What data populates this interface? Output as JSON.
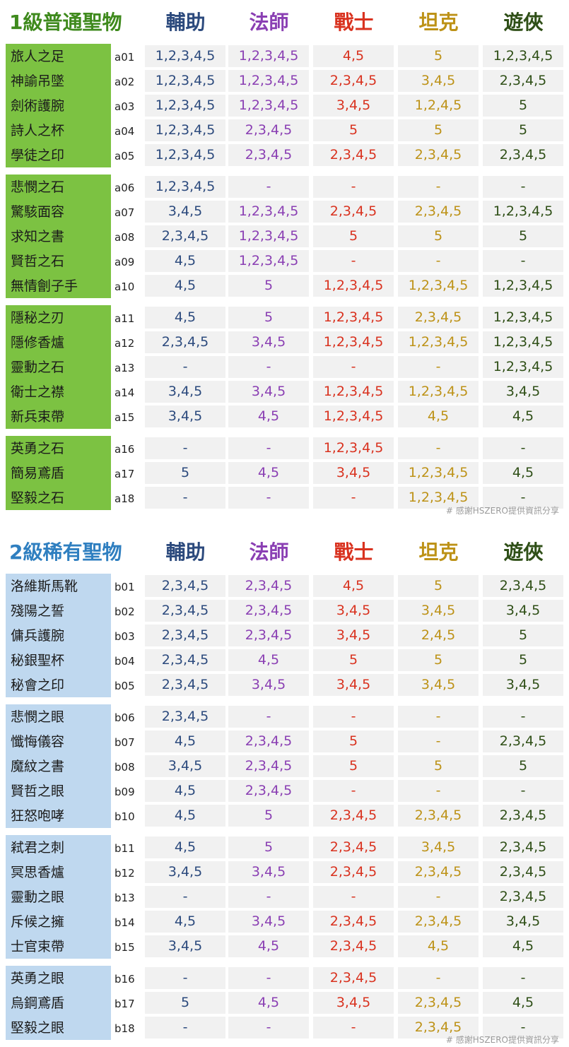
{
  "columns": [
    "輔助",
    "法師",
    "戰士",
    "坦克",
    "遊俠"
  ],
  "colors": {
    "support": "#2c4a7d",
    "mage": "#8a3fb3",
    "warrior": "#d9321f",
    "tank": "#bd9217",
    "ranger": "#2f4f17",
    "common_label_bg": "#7cc242",
    "rare_label_bg": "#bfd8ef"
  },
  "credit": "# 感謝HSZERO提供資訊分享",
  "sections": [
    {
      "title": "1級普通聖物",
      "groups": [
        [
          {
            "name": "旅人之足",
            "code": "a01",
            "values": [
              "1,2,3,4,5",
              "1,2,3,4,5",
              "4,5",
              "5",
              "1,2,3,4,5"
            ]
          },
          {
            "name": "神諭吊墜",
            "code": "a02",
            "values": [
              "1,2,3,4,5",
              "1,2,3,4,5",
              "2,3,4,5",
              "3,4,5",
              "2,3,4,5"
            ]
          },
          {
            "name": "劍術護腕",
            "code": "a03",
            "values": [
              "1,2,3,4,5",
              "1,2,3,4,5",
              "3,4,5",
              "1,2,4,5",
              "5"
            ]
          },
          {
            "name": "詩人之杯",
            "code": "a04",
            "values": [
              "1,2,3,4,5",
              "2,3,4,5",
              "5",
              "5",
              "5"
            ]
          },
          {
            "name": "學徒之印",
            "code": "a05",
            "values": [
              "1,2,3,4,5",
              "2,3,4,5",
              "2,3,4,5",
              "2,3,4,5",
              "2,3,4,5"
            ]
          }
        ],
        [
          {
            "name": "悲憫之石",
            "code": "a06",
            "values": [
              "1,2,3,4,5",
              "-",
              "-",
              "-",
              "-"
            ]
          },
          {
            "name": "驚駭面容",
            "code": "a07",
            "values": [
              "3,4,5",
              "1,2,3,4,5",
              "2,3,4,5",
              "2,3,4,5",
              "1,2,3,4,5"
            ]
          },
          {
            "name": "求知之書",
            "code": "a08",
            "values": [
              "2,3,4,5",
              "1,2,3,4,5",
              "5",
              "5",
              "5"
            ]
          },
          {
            "name": "賢哲之石",
            "code": "a09",
            "values": [
              "4,5",
              "1,2,3,4,5",
              "-",
              "-",
              "-"
            ]
          },
          {
            "name": "無情劊子手",
            "code": "a10",
            "values": [
              "4,5",
              "5",
              "1,2,3,4,5",
              "1,2,3,4,5",
              "1,2,3,4,5"
            ]
          }
        ],
        [
          {
            "name": "隱秘之刃",
            "code": "a11",
            "values": [
              "4,5",
              "5",
              "1,2,3,4,5",
              "2,3,4,5",
              "1,2,3,4,5"
            ]
          },
          {
            "name": "隱修香爐",
            "code": "a12",
            "values": [
              "2,3,4,5",
              "3,4,5",
              "1,2,3,4,5",
              "1,2,3,4,5",
              "1,2,3,4,5"
            ]
          },
          {
            "name": "靈動之石",
            "code": "a13",
            "values": [
              "-",
              "-",
              "-",
              "-",
              "1,2,3,4,5"
            ]
          },
          {
            "name": "衛士之襟",
            "code": "a14",
            "values": [
              "3,4,5",
              "3,4,5",
              "1,2,3,4,5",
              "1,2,3,4,5",
              "3,4,5"
            ]
          },
          {
            "name": "新兵束帶",
            "code": "a15",
            "values": [
              "3,4,5",
              "4,5",
              "1,2,3,4,5",
              "4,5",
              "4,5"
            ]
          }
        ],
        [
          {
            "name": "英勇之石",
            "code": "a16",
            "values": [
              "-",
              "-",
              "1,2,3,4,5",
              "-",
              "-"
            ]
          },
          {
            "name": "簡易鳶盾",
            "code": "a17",
            "values": [
              "5",
              "4,5",
              "3,4,5",
              "1,2,3,4,5",
              "4,5"
            ]
          },
          {
            "name": "堅毅之石",
            "code": "a18",
            "values": [
              "-",
              "-",
              "-",
              "1,2,3,4,5",
              "-"
            ]
          }
        ]
      ]
    },
    {
      "title": "2級稀有聖物",
      "groups": [
        [
          {
            "name": "洛維斯馬靴",
            "code": "b01",
            "values": [
              "2,3,4,5",
              "2,3,4,5",
              "4,5",
              "5",
              "2,3,4,5"
            ]
          },
          {
            "name": "殘陽之誓",
            "code": "b02",
            "values": [
              "2,3,4,5",
              "2,3,4,5",
              "3,4,5",
              "3,4,5",
              "3,4,5"
            ]
          },
          {
            "name": "傭兵護腕",
            "code": "b03",
            "values": [
              "2,3,4,5",
              "2,3,4,5",
              "3,4,5",
              "2,4,5",
              "5"
            ]
          },
          {
            "name": "秘銀聖杯",
            "code": "b04",
            "values": [
              "2,3,4,5",
              "4,5",
              "5",
              "5",
              "5"
            ]
          },
          {
            "name": "秘會之印",
            "code": "b05",
            "values": [
              "2,3,4,5",
              "3,4,5",
              "3,4,5",
              "3,4,5",
              "3,4,5"
            ]
          }
        ],
        [
          {
            "name": "悲憫之眼",
            "code": "b06",
            "values": [
              "2,3,4,5",
              "-",
              "-",
              "-",
              "-"
            ]
          },
          {
            "name": "懺悔儀容",
            "code": "b07",
            "values": [
              "4,5",
              "2,3,4,5",
              "5",
              "-",
              "2,3,4,5"
            ]
          },
          {
            "name": "魔紋之書",
            "code": "b08",
            "values": [
              "3,4,5",
              "2,3,4,5",
              "5",
              "5",
              "5"
            ]
          },
          {
            "name": "賢哲之眼",
            "code": "b09",
            "values": [
              "4,5",
              "2,3,4,5",
              "-",
              "-",
              "-"
            ]
          },
          {
            "name": "狂怒咆哮",
            "code": "b10",
            "values": [
              "4,5",
              "5",
              "2,3,4,5",
              "2,3,4,5",
              "2,3,4,5"
            ]
          }
        ],
        [
          {
            "name": "弒君之刺",
            "code": "b11",
            "values": [
              "4,5",
              "5",
              "2,3,4,5",
              "3,4,5",
              "2,3,4,5"
            ]
          },
          {
            "name": "冥思香爐",
            "code": "b12",
            "values": [
              "3,4,5",
              "3,4,5",
              "2,3,4,5",
              "2,3,4,5",
              "2,3,4,5"
            ]
          },
          {
            "name": "靈動之眼",
            "code": "b13",
            "values": [
              "-",
              "-",
              "-",
              "-",
              "2,3,4,5"
            ]
          },
          {
            "name": "斥候之擁",
            "code": "b14",
            "values": [
              "4,5",
              "3,4,5",
              "2,3,4,5",
              "2,3,4,5",
              "3,4,5"
            ]
          },
          {
            "name": "士官束帶",
            "code": "b15",
            "values": [
              "3,4,5",
              "4,5",
              "2,3,4,5",
              "4,5",
              "4,5"
            ]
          }
        ],
        [
          {
            "name": "英勇之眼",
            "code": "b16",
            "values": [
              "-",
              "-",
              "2,3,4,5",
              "-",
              "-"
            ]
          },
          {
            "name": "烏鋼鳶盾",
            "code": "b17",
            "values": [
              "5",
              "4,5",
              "3,4,5",
              "2,3,4,5",
              "4,5"
            ]
          },
          {
            "name": "堅毅之眼",
            "code": "b18",
            "values": [
              "-",
              "-",
              "-",
              "2,3,4,5",
              "-"
            ]
          }
        ]
      ]
    }
  ]
}
